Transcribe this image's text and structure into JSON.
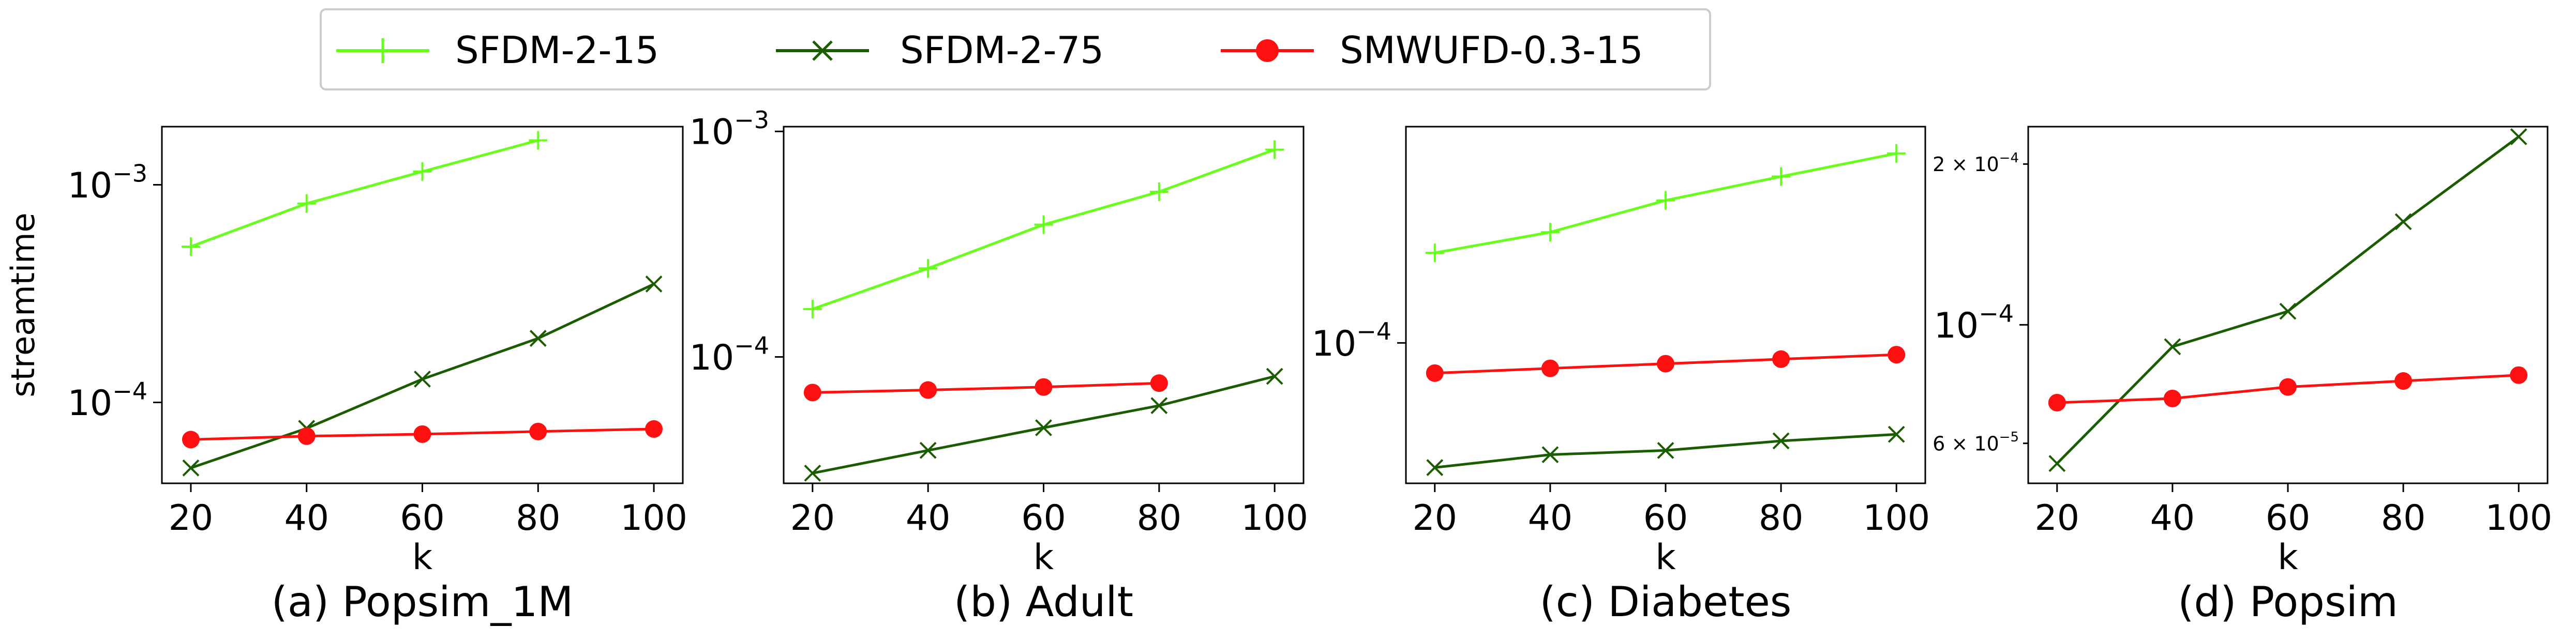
{
  "legend": {
    "placement": "top-center",
    "entries": [
      {
        "label": "SFDM-2-15",
        "color": "#66ff1a",
        "marker": "plus"
      },
      {
        "label": "SFDM-2-75",
        "color": "#1a5c00",
        "marker": "x"
      },
      {
        "label": "SMWUFD-0.3-15",
        "color": "#ff1010",
        "marker": "circle"
      }
    ]
  },
  "chart_data": [
    {
      "type": "line",
      "caption": "(a) Popsim_1M",
      "xlabel": "k",
      "ylabel": "streamtime",
      "yscale": "log",
      "xlim": [
        15,
        105
      ],
      "ylim": [
        4.25e-05,
        0.00185
      ],
      "xticks": [
        20,
        40,
        60,
        80,
        100
      ],
      "xtick_labels": [
        "20",
        "40",
        "60",
        "80",
        "100"
      ],
      "yticks": [
        {
          "value": 0.001,
          "base": "10",
          "exp": "−3",
          "size": "major"
        },
        {
          "value": 0.0001,
          "base": "10",
          "exp": "−4",
          "size": "major"
        }
      ],
      "series": [
        {
          "name": "SFDM-2-15",
          "x": [
            20,
            40,
            60,
            80
          ],
          "y": [
            0.00052,
            0.00082,
            0.00115,
            0.0016
          ]
        },
        {
          "name": "SFDM-2-75",
          "x": [
            20,
            40,
            60,
            80,
            100
          ],
          "y": [
            5e-05,
            7.6e-05,
            0.000128,
            0.000197,
            0.00035
          ]
        },
        {
          "name": "SMWUFD-0.3-15",
          "x": [
            20,
            40,
            60,
            80,
            100
          ],
          "y": [
            6.75e-05,
            7e-05,
            7.15e-05,
            7.35e-05,
            7.55e-05
          ]
        }
      ]
    },
    {
      "type": "line",
      "caption": "(b) Adult",
      "xlabel": "k",
      "ylabel": "",
      "yscale": "log",
      "xlim": [
        15,
        105
      ],
      "ylim": [
        2.75e-05,
        0.00105
      ],
      "xticks": [
        20,
        40,
        60,
        80,
        100
      ],
      "xtick_labels": [
        "20",
        "40",
        "60",
        "80",
        "100"
      ],
      "yticks": [
        {
          "value": 0.001,
          "base": "10",
          "exp": "−3",
          "size": "major"
        },
        {
          "value": 0.0001,
          "base": "10",
          "exp": "−4",
          "size": "major"
        }
      ],
      "series": [
        {
          "name": "SFDM-2-15",
          "x": [
            20,
            40,
            60,
            80,
            100
          ],
          "y": [
            0.000163,
            0.000247,
            0.000386,
            0.00054,
            0.00083
          ]
        },
        {
          "name": "SFDM-2-75",
          "x": [
            20,
            40,
            60,
            80,
            100
          ],
          "y": [
            3.05e-05,
            3.85e-05,
            4.85e-05,
            6.08e-05,
            8.2e-05
          ]
        },
        {
          "name": "SMWUFD-0.3-15",
          "x": [
            20,
            40,
            60,
            80
          ],
          "y": [
            6.95e-05,
            7.13e-05,
            7.35e-05,
            7.65e-05
          ]
        }
      ]
    },
    {
      "type": "line",
      "caption": "(c) Diabetes",
      "xlabel": "k",
      "ylabel": "",
      "yscale": "log",
      "xlim": [
        15,
        105
      ],
      "ylim": [
        5.1e-05,
        0.000282
      ],
      "xticks": [
        20,
        40,
        60,
        80,
        100
      ],
      "xtick_labels": [
        "20",
        "40",
        "60",
        "80",
        "100"
      ],
      "yticks": [
        {
          "value": 0.0001,
          "base": "10",
          "exp": "−4",
          "size": "major"
        }
      ],
      "series": [
        {
          "name": "SFDM-2-15",
          "x": [
            20,
            40,
            60,
            80,
            100
          ],
          "y": [
            0.000154,
            0.00017,
            0.000198,
            0.000222,
            0.000248
          ]
        },
        {
          "name": "SFDM-2-75",
          "x": [
            20,
            40,
            60,
            80,
            100
          ],
          "y": [
            5.5e-05,
            5.85e-05,
            5.97e-05,
            6.25e-05,
            6.45e-05
          ]
        },
        {
          "name": "SMWUFD-0.3-15",
          "x": [
            20,
            40,
            60,
            80,
            100
          ],
          "y": [
            8.65e-05,
            8.85e-05,
            9.05e-05,
            9.25e-05,
            9.45e-05
          ]
        }
      ]
    },
    {
      "type": "line",
      "caption": "(d) Popsim",
      "xlabel": "k",
      "ylabel": "",
      "yscale": "log",
      "xlim": [
        15,
        105
      ],
      "ylim": [
        5.05e-05,
        0.000235
      ],
      "xticks": [
        20,
        40,
        60,
        80,
        100
      ],
      "xtick_labels": [
        "20",
        "40",
        "60",
        "80",
        "100"
      ],
      "yticks": [
        {
          "value": 0.0002,
          "base": "2 × 10",
          "exp": "−4",
          "size": "minor"
        },
        {
          "value": 0.0001,
          "base": "10",
          "exp": "−4",
          "size": "major"
        },
        {
          "value": 6e-05,
          "base": "6 × 10",
          "exp": "−5",
          "size": "minor"
        }
      ],
      "series": [
        {
          "name": "SFDM-2-15",
          "x": [],
          "y": []
        },
        {
          "name": "SFDM-2-75",
          "x": [
            20,
            40,
            60,
            80,
            100
          ],
          "y": [
            5.5e-05,
            9.1e-05,
            0.000106,
            0.000156,
            0.000225
          ]
        },
        {
          "name": "SMWUFD-0.3-15",
          "x": [
            20,
            40,
            60,
            80,
            100
          ],
          "y": [
            7.15e-05,
            7.28e-05,
            7.65e-05,
            7.85e-05,
            8.05e-05
          ]
        }
      ]
    }
  ]
}
